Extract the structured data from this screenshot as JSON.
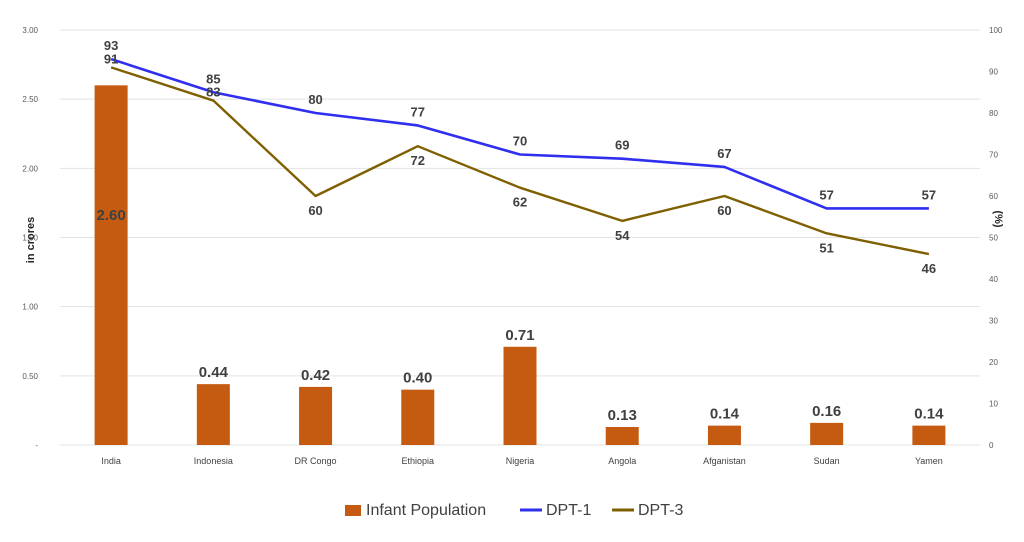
{
  "chart_data": {
    "type": "bar-line-combo",
    "title": "",
    "categories": [
      "India",
      "Indonesia",
      "DR Congo",
      "Ethiopia",
      "Nigeria",
      "Angola",
      "Afganistan",
      "Sudan",
      "Yamen"
    ],
    "y_left": {
      "label": "in crores",
      "range": [
        0,
        3
      ],
      "ticks": [
        "-",
        "0.50",
        "1.00",
        "1.50",
        "2.00",
        "2.50",
        "3.00"
      ],
      "tick_values": [
        0,
        0.5,
        1.0,
        1.5,
        2.0,
        2.5,
        3.0
      ]
    },
    "y_right": {
      "label": "(%)",
      "range": [
        0,
        100
      ],
      "ticks": [
        "0",
        "10",
        "20",
        "30",
        "40",
        "50",
        "60",
        "70",
        "80",
        "90",
        "100"
      ],
      "tick_values": [
        0,
        10,
        20,
        30,
        40,
        50,
        60,
        70,
        80,
        90,
        100
      ]
    },
    "grid": true,
    "legend_position": "bottom",
    "series": [
      {
        "name": "Infant Population",
        "type": "bar",
        "axis": "left",
        "color": "#C55A11",
        "values": [
          2.6,
          0.44,
          0.42,
          0.4,
          0.71,
          0.13,
          0.14,
          0.16,
          0.14
        ],
        "labels": [
          "2.60",
          "0.44",
          "0.42",
          "0.40",
          "0.71",
          "0.13",
          "0.14",
          "0.16",
          "0.14"
        ]
      },
      {
        "name": "DPT-1",
        "type": "line",
        "axis": "right",
        "color": "#2F2FEF",
        "values": [
          93,
          85,
          80,
          77,
          70,
          69,
          67,
          57,
          57
        ],
        "labels": [
          "93",
          "85",
          "80",
          "77",
          "70",
          "69",
          "67",
          "57",
          "57"
        ]
      },
      {
        "name": "DPT-3",
        "type": "line",
        "axis": "right",
        "color": "#7F6000",
        "values": [
          91,
          83,
          60,
          72,
          62,
          54,
          60,
          51,
          46
        ],
        "labels": [
          "91",
          "83",
          "60",
          "72",
          "62",
          "54",
          "60",
          "51",
          "46"
        ]
      }
    ]
  }
}
